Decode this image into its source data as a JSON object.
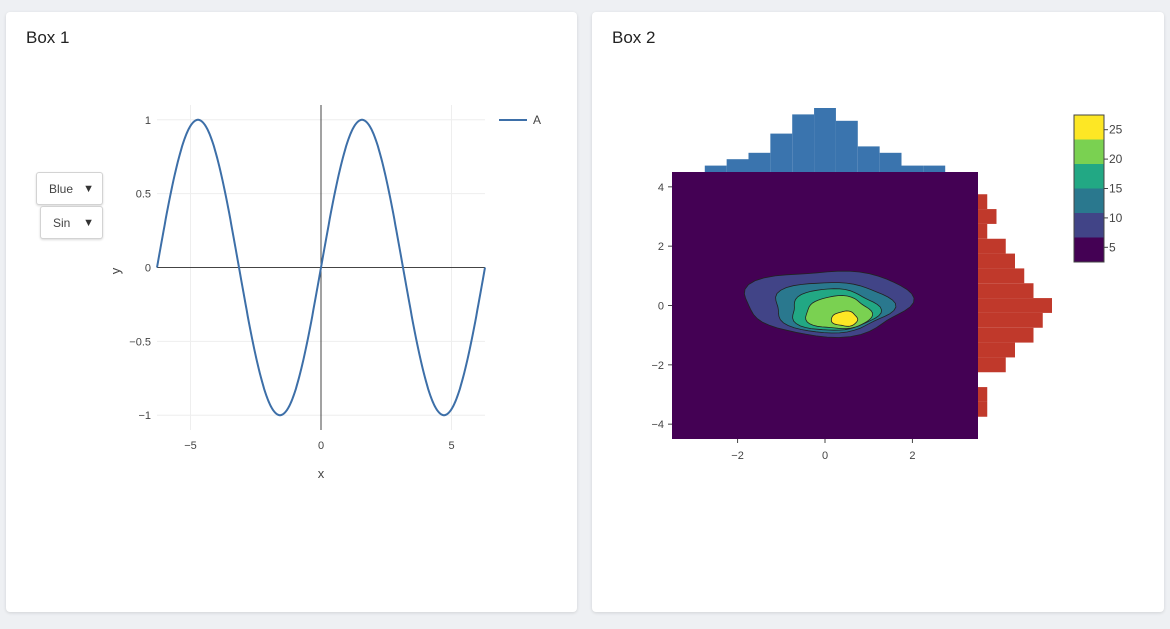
{
  "box1": {
    "title": "Box 1",
    "dropdown_color": "Blue",
    "dropdown_func": "Sin",
    "arrow": "▼"
  },
  "box2": {
    "title": "Box 2"
  },
  "colors": {
    "line": "#3d6fa8",
    "hist_top": "#3a74ae",
    "hist_right": "#c0392b"
  },
  "chart_data": [
    {
      "type": "line",
      "title": "",
      "xlabel": "x",
      "ylabel": "y",
      "xlim": [
        -6.283,
        6.283
      ],
      "ylim": [
        -1.1,
        1.1
      ],
      "x_ticks": [
        "−5",
        "0",
        "5"
      ],
      "y_ticks": [
        "1",
        "0.5",
        "0",
        "−0.5",
        "−1"
      ],
      "series": [
        {
          "name": "A",
          "function": "sin(x)",
          "x_range": [
            -6.283,
            6.283
          ]
        }
      ]
    },
    {
      "type": "heatmap",
      "subtype": "2d density contour with marginal histograms",
      "xlim": [
        -3.5,
        3.5
      ],
      "ylim": [
        -4.5,
        4.5
      ],
      "x_ticks": [
        "−2",
        "0",
        "2"
      ],
      "y_ticks": [
        "4",
        "2",
        "0",
        "−2",
        "−4"
      ],
      "colorbar_ticks": [
        "25",
        "20",
        "15",
        "10",
        "5"
      ],
      "contour_colors": [
        "#440154",
        "#414487",
        "#2a788e",
        "#22a884",
        "#7ad151",
        "#fde725"
      ],
      "hist_x": {
        "bins": [
          -2.5,
          -2,
          -1.5,
          -1,
          -0.5,
          0,
          0.5,
          1,
          1.5,
          2,
          2.5
        ],
        "counts": [
          1,
          2,
          3,
          6,
          9,
          10,
          8,
          4,
          3,
          1,
          1
        ]
      },
      "hist_y": {
        "bins": [
          3.5,
          3,
          2.5,
          2,
          1.5,
          1,
          0.5,
          0,
          -0.5,
          -1,
          -1.5,
          -2,
          -2.5,
          -3,
          -3.5
        ],
        "counts": [
          1,
          2,
          1,
          3,
          4,
          5,
          6,
          8,
          7,
          6,
          4,
          3,
          0,
          1,
          1
        ]
      }
    }
  ]
}
